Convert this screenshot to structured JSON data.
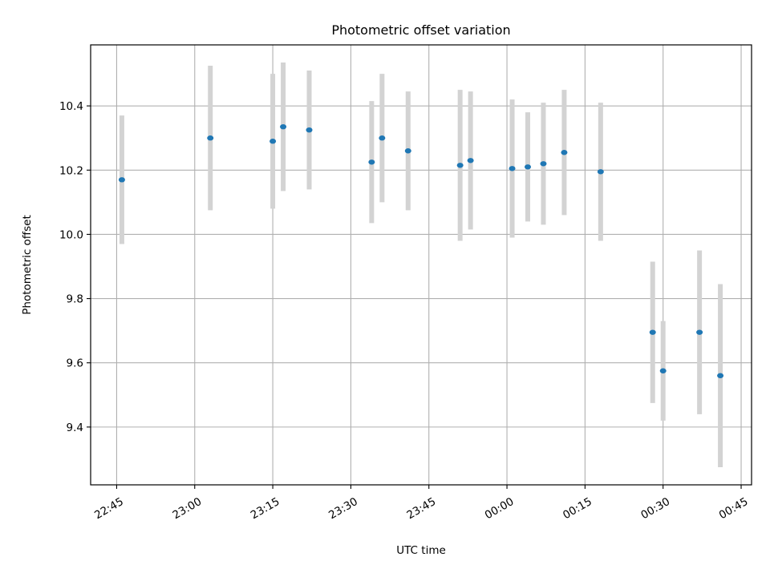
{
  "chart_data": {
    "type": "scatter",
    "title": "Photometric offset variation",
    "xlabel": "UTC time",
    "ylabel": "Photometric offset",
    "x_unit": "UTC time (HH:MM), spanning midnight",
    "x_ticks": [
      "22:45",
      "23:00",
      "23:15",
      "23:30",
      "23:45",
      "00:00",
      "00:15",
      "00:30",
      "00:45"
    ],
    "y_ticks": [
      "9.4",
      "9.6",
      "9.8",
      "10.0",
      "10.2",
      "10.4"
    ],
    "xlim": [
      "22:40",
      "00:47"
    ],
    "ylim": [
      9.22,
      10.59
    ],
    "grid": true,
    "point_color": "#1f77b4",
    "errorbar_color": "#d3d3d3",
    "points": [
      {
        "t": "22:46",
        "y": 10.17,
        "yerr": 0.2
      },
      {
        "t": "23:03",
        "y": 10.3,
        "yerr": 0.225
      },
      {
        "t": "23:15",
        "y": 10.29,
        "yerr": 0.21
      },
      {
        "t": "23:17",
        "y": 10.335,
        "yerr": 0.2
      },
      {
        "t": "23:22",
        "y": 10.325,
        "yerr": 0.185
      },
      {
        "t": "23:34",
        "y": 10.225,
        "yerr": 0.19
      },
      {
        "t": "23:36",
        "y": 10.3,
        "yerr": 0.2
      },
      {
        "t": "23:41",
        "y": 10.26,
        "yerr": 0.185
      },
      {
        "t": "23:51",
        "y": 10.215,
        "yerr": 0.235
      },
      {
        "t": "23:53",
        "y": 10.23,
        "yerr": 0.215
      },
      {
        "t": "00:01",
        "y": 10.205,
        "yerr": 0.215
      },
      {
        "t": "00:04",
        "y": 10.21,
        "yerr": 0.17
      },
      {
        "t": "00:07",
        "y": 10.22,
        "yerr": 0.19
      },
      {
        "t": "00:11",
        "y": 10.255,
        "yerr": 0.195
      },
      {
        "t": "00:18",
        "y": 10.195,
        "yerr": 0.215
      },
      {
        "t": "00:28",
        "y": 9.695,
        "yerr": 0.22
      },
      {
        "t": "00:30",
        "y": 9.575,
        "yerr": 0.155
      },
      {
        "t": "00:37",
        "y": 9.695,
        "yerr": 0.255
      },
      {
        "t": "00:41",
        "y": 9.56,
        "yerr": 0.285
      }
    ]
  }
}
